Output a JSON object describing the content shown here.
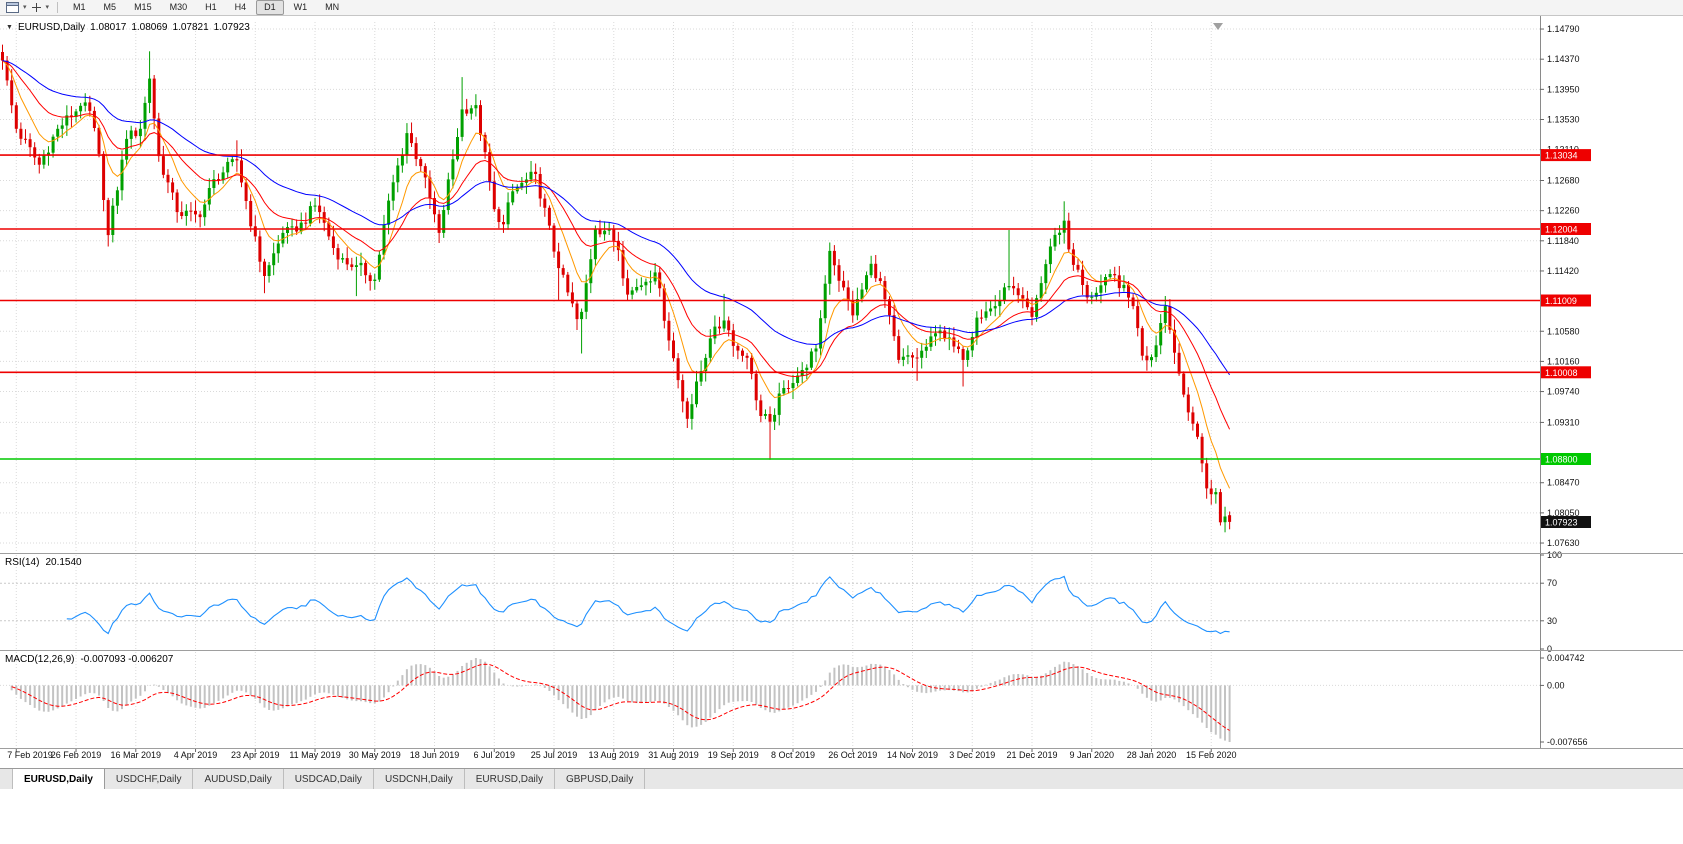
{
  "toolbar": {
    "timeframes": [
      "M1",
      "M5",
      "M15",
      "M30",
      "H1",
      "H4",
      "D1",
      "W1",
      "MN"
    ],
    "active_timeframe": "D1"
  },
  "chart_caption": {
    "symbol_period": "EURUSD,Daily",
    "open": "1.08017",
    "high": "1.08069",
    "low": "1.07821",
    "close": "1.07923"
  },
  "rsi": {
    "label": "RSI(14)",
    "value": "20.1540",
    "period": 14,
    "ticks": [
      "100",
      "70",
      "30",
      "0"
    ],
    "levels": [
      70,
      30
    ],
    "color": "#1E90FF",
    "range": [
      0,
      100
    ]
  },
  "macd": {
    "label": "MACD(12,26,9)",
    "values_text": "-0.007093 -0.006207",
    "macd_value": "-0.007093",
    "signal_value": "-0.006207",
    "ticks": [
      "0.004742",
      "0.00",
      "-0.007656"
    ],
    "histogram_color": "#c3c3c3",
    "signal_color": "#ff0000"
  },
  "tabs": {
    "items": [
      "EURUSD,Daily",
      "USDCHF,Daily",
      "AUDUSD,Daily",
      "USDCAD,Daily",
      "USDCNH,Daily",
      "EURUSD,Daily",
      "GBPUSD,Daily"
    ],
    "active_index": 0
  },
  "chart_data": {
    "type": "candlestick",
    "symbol": "EURUSD",
    "period": "Daily",
    "bars_total": 268,
    "ylim": {
      "min": 1.07505,
      "max": 1.14888
    },
    "up_color": "#00A000",
    "down_color": "#DD0000",
    "last_ohlc": {
      "open": 1.08017,
      "high": 1.08069,
      "low": 1.07821,
      "close": 1.07923
    },
    "current_price": {
      "value": 1.07923,
      "tag_bg": "#111111"
    },
    "y_ticks": [
      "1.14790",
      "1.14370",
      "1.13950",
      "1.13530",
      "1.13110",
      "1.12680",
      "1.12260",
      "1.11840",
      "1.11420",
      "1.10580",
      "1.10160",
      "1.09740",
      "1.09310",
      "1.08470",
      "1.08050",
      "1.07630"
    ],
    "levels": [
      {
        "price": 1.13034,
        "color": "#EE0000"
      },
      {
        "price": 1.12004,
        "color": "#EE0000"
      },
      {
        "price": 1.11009,
        "color": "#EE0000"
      },
      {
        "price": 1.10008,
        "color": "#EE0000"
      },
      {
        "price": 1.088,
        "color": "#00C800"
      }
    ],
    "moving_averages": [
      {
        "name": "fast",
        "period": 8,
        "color": "#FF9900"
      },
      {
        "name": "medium",
        "period": 20,
        "color": "#FF0000"
      },
      {
        "name": "slow",
        "period": 45,
        "color": "#0000FF"
      }
    ],
    "x_labels": [
      {
        "bar": 3,
        "text": "7 Feb 2019"
      },
      {
        "bar": 16,
        "text": "26 Feb 2019"
      },
      {
        "bar": 29,
        "text": "16 Mar 2019"
      },
      {
        "bar": 42,
        "text": "4 Apr 2019"
      },
      {
        "bar": 55,
        "text": "23 Apr 2019"
      },
      {
        "bar": 68,
        "text": "11 May 2019"
      },
      {
        "bar": 81,
        "text": "30 May 2019"
      },
      {
        "bar": 94,
        "text": "18 Jun 2019"
      },
      {
        "bar": 107,
        "text": "6 Jul 2019"
      },
      {
        "bar": 120,
        "text": "25 Jul 2019"
      },
      {
        "bar": 133,
        "text": "13 Aug 2019"
      },
      {
        "bar": 146,
        "text": "31 Aug 2019"
      },
      {
        "bar": 159,
        "text": "19 Sep 2019"
      },
      {
        "bar": 172,
        "text": "8 Oct 2019"
      },
      {
        "bar": 185,
        "text": "26 Oct 2019"
      },
      {
        "bar": 198,
        "text": "14 Nov 2019"
      },
      {
        "bar": 211,
        "text": "3 Dec 2019"
      },
      {
        "bar": 224,
        "text": "21 Dec 2019"
      },
      {
        "bar": 237,
        "text": "9 Jan 2020"
      },
      {
        "bar": 250,
        "text": "28 Jan 2020"
      },
      {
        "bar": 263,
        "text": "15 Feb 2020"
      }
    ],
    "close_path": [
      [
        0,
        1.1435
      ],
      [
        3,
        1.134
      ],
      [
        8,
        1.129
      ],
      [
        12,
        1.134
      ],
      [
        17,
        1.1372
      ],
      [
        19,
        1.1365
      ],
      [
        21,
        1.1305
      ],
      [
        23,
        1.1192
      ],
      [
        27,
        1.1326
      ],
      [
        30,
        1.134
      ],
      [
        32,
        1.141
      ],
      [
        34,
        1.1302
      ],
      [
        38,
        1.1224
      ],
      [
        43,
        1.1217
      ],
      [
        46,
        1.127
      ],
      [
        51,
        1.1296
      ],
      [
        56,
        1.1155
      ],
      [
        57,
        1.1135
      ],
      [
        58,
        1.115
      ],
      [
        61,
        1.1195
      ],
      [
        64,
        1.1197
      ],
      [
        68,
        1.1233
      ],
      [
        69,
        1.1224
      ],
      [
        73,
        1.1158
      ],
      [
        77,
        1.115
      ],
      [
        81,
        1.113
      ],
      [
        84,
        1.124
      ],
      [
        88,
        1.1334
      ],
      [
        91,
        1.1288
      ],
      [
        95,
        1.1195
      ],
      [
        100,
        1.1367
      ],
      [
        103,
        1.1373
      ],
      [
        107,
        1.1228
      ],
      [
        109,
        1.1207
      ],
      [
        111,
        1.1253
      ],
      [
        116,
        1.1277
      ],
      [
        121,
        1.1146
      ],
      [
        125,
        1.1075
      ],
      [
        126,
        1.1085
      ],
      [
        129,
        1.12
      ],
      [
        132,
        1.12
      ],
      [
        134,
        1.1171
      ],
      [
        136,
        1.1109
      ],
      [
        142,
        1.114
      ],
      [
        147,
        1.099
      ],
      [
        149,
        1.0936
      ],
      [
        154,
        1.1048
      ],
      [
        157,
        1.1073
      ],
      [
        160,
        1.1031
      ],
      [
        162,
        1.1021
      ],
      [
        165,
        1.094
      ],
      [
        167,
        1.0932
      ],
      [
        170,
        1.0979
      ],
      [
        174,
        1.1004
      ],
      [
        177,
        1.1034
      ],
      [
        180,
        1.117
      ],
      [
        181,
        1.115
      ],
      [
        185,
        1.108
      ],
      [
        189,
        1.1152
      ],
      [
        191,
        1.1128
      ],
      [
        195,
        1.1018
      ],
      [
        199,
        1.1021
      ],
      [
        204,
        1.1059
      ],
      [
        209,
        1.1018
      ],
      [
        212,
        1.1077
      ],
      [
        216,
        1.1093
      ],
      [
        219,
        1.1121
      ],
      [
        224,
        1.1078
      ],
      [
        228,
        1.1176
      ],
      [
        231,
        1.1212
      ],
      [
        232,
        1.1172
      ],
      [
        236,
        1.1105
      ],
      [
        242,
        1.1136
      ],
      [
        246,
        1.1093
      ],
      [
        248,
        1.1024
      ],
      [
        250,
        1.1022
      ],
      [
        253,
        1.1093
      ],
      [
        254,
        1.106
      ],
      [
        256,
        1.0999
      ],
      [
        258,
        1.0945
      ],
      [
        260,
        1.0911
      ],
      [
        262,
        1.0839
      ],
      [
        263,
        1.0831
      ],
      [
        264,
        1.0834
      ],
      [
        265,
        1.0792
      ],
      [
        266,
        1.08
      ],
      [
        267,
        1.07923
      ]
    ],
    "wick_events": [
      {
        "bar": 23,
        "low": 1.1176
      },
      {
        "bar": 32,
        "high": 1.1448
      },
      {
        "bar": 38,
        "low": 1.1213
      },
      {
        "bar": 51,
        "high": 1.1324
      },
      {
        "bar": 57,
        "low": 1.1111
      },
      {
        "bar": 77,
        "low": 1.1107
      },
      {
        "bar": 88,
        "high": 1.1348
      },
      {
        "bar": 95,
        "low": 1.1181
      },
      {
        "bar": 100,
        "high": 1.1412
      },
      {
        "bar": 121,
        "low": 1.1101
      },
      {
        "bar": 126,
        "low": 1.1027
      },
      {
        "bar": 149,
        "low": 1.0926
      },
      {
        "bar": 157,
        "high": 1.111
      },
      {
        "bar": 167,
        "low": 1.0879
      },
      {
        "bar": 199,
        "low": 1.0989
      },
      {
        "bar": 209,
        "low": 1.0981
      },
      {
        "bar": 219,
        "high": 1.1199
      },
      {
        "bar": 231,
        "high": 1.1239
      },
      {
        "bar": 266,
        "low": 1.0778
      }
    ]
  }
}
